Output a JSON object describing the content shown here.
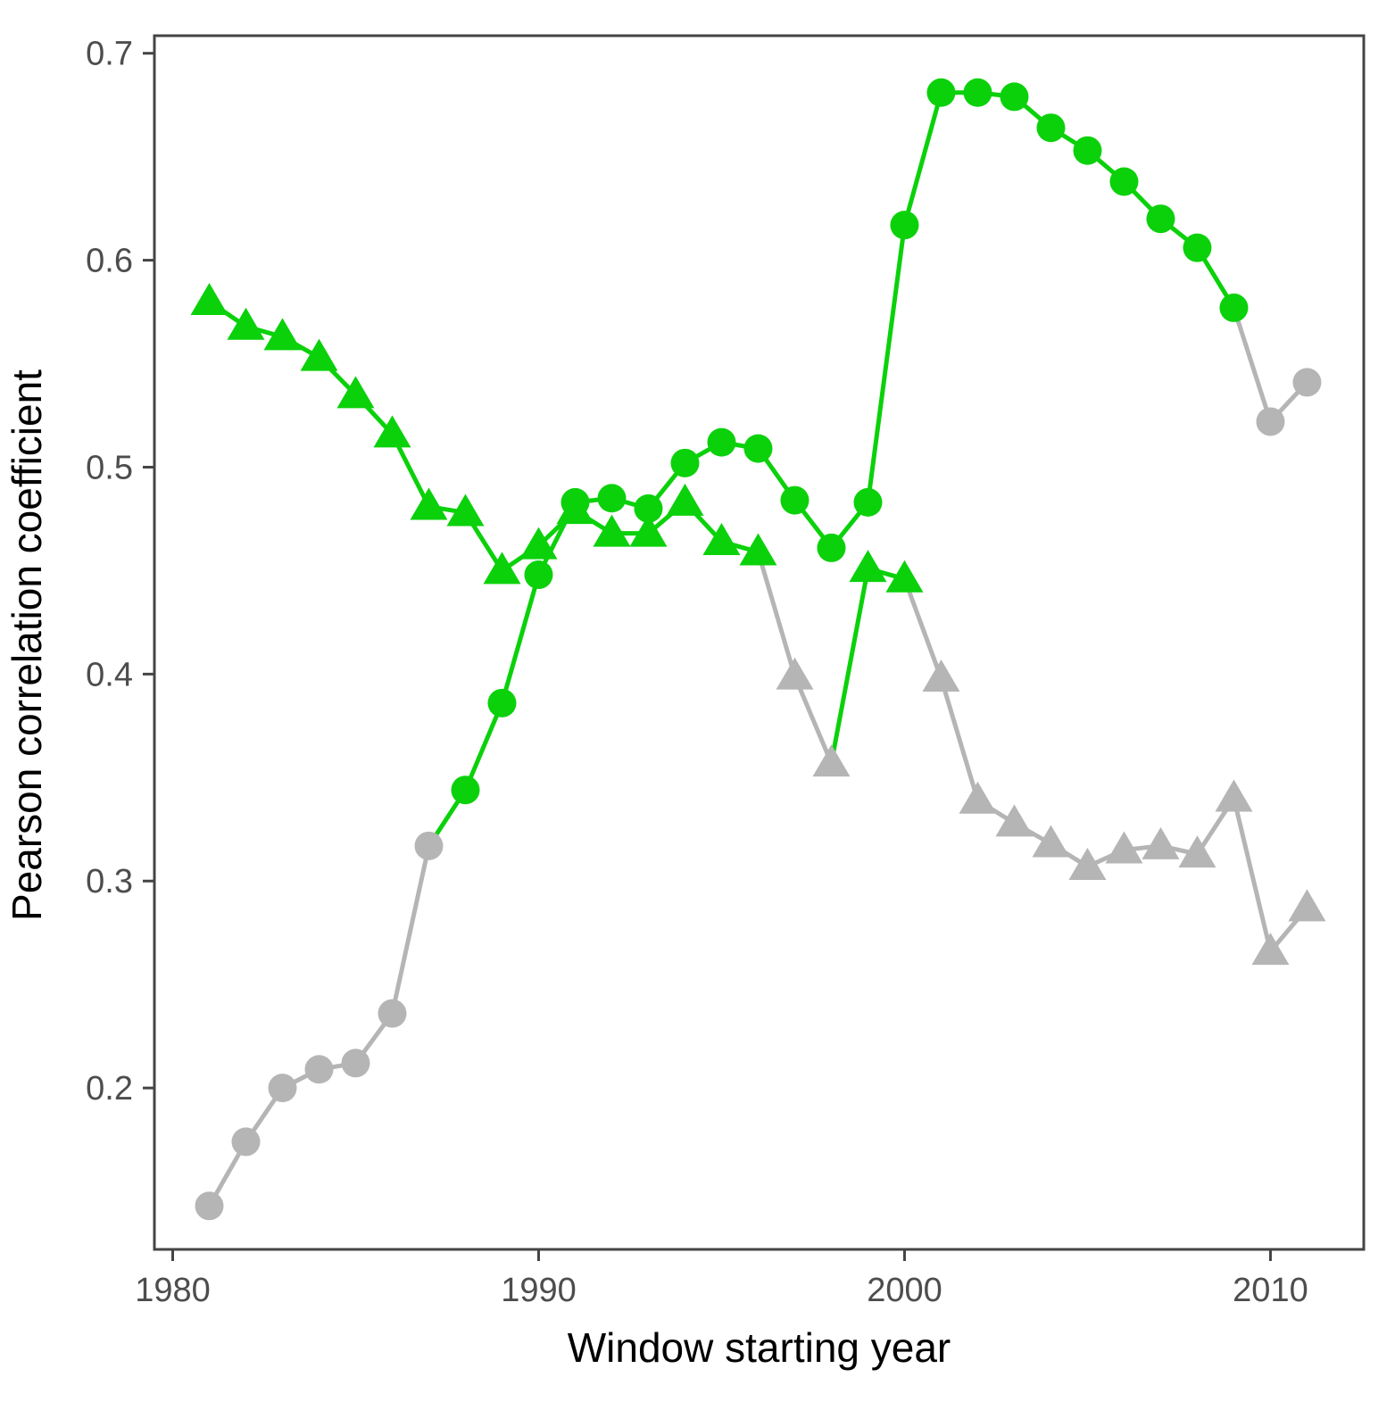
{
  "chart_data": {
    "type": "line",
    "title": "",
    "xlabel": "Window starting year",
    "ylabel": "Pearson correlation coefficient",
    "x": [
      1981,
      1982,
      1983,
      1984,
      1985,
      1986,
      1987,
      1988,
      1989,
      1990,
      1991,
      1992,
      1993,
      1994,
      1995,
      1996,
      1997,
      1998,
      1999,
      2000,
      2001,
      2002,
      2003,
      2004,
      2005,
      2006,
      2007,
      2008,
      2009,
      2010,
      2011
    ],
    "series": [
      {
        "name": "triangle-series",
        "marker": "triangle",
        "values": [
          0.58,
          0.568,
          0.563,
          0.553,
          0.535,
          0.516,
          0.481,
          0.478,
          0.45,
          0.462,
          0.479,
          0.468,
          0.468,
          0.483,
          0.464,
          0.459,
          0.399,
          0.357,
          0.451,
          0.446,
          0.398,
          0.339,
          0.328,
          0.318,
          0.307,
          0.315,
          0.317,
          0.313,
          0.34,
          0.266,
          0.287
        ],
        "point_colors": [
          "green",
          "green",
          "green",
          "green",
          "green",
          "green",
          "green",
          "green",
          "green",
          "green",
          "green",
          "green",
          "green",
          "green",
          "green",
          "green",
          "gray",
          "gray",
          "green",
          "green",
          "gray",
          "gray",
          "gray",
          "gray",
          "gray",
          "gray",
          "gray",
          "gray",
          "gray",
          "gray",
          "gray"
        ]
      },
      {
        "name": "circle-series",
        "marker": "circle",
        "values": [
          0.143,
          0.174,
          0.2,
          0.209,
          0.212,
          0.236,
          0.317,
          0.344,
          0.386,
          0.448,
          0.483,
          0.485,
          0.48,
          0.502,
          0.512,
          0.509,
          0.484,
          0.461,
          0.483,
          0.617,
          0.681,
          0.681,
          0.679,
          0.664,
          0.653,
          0.638,
          0.62,
          0.606,
          0.577,
          0.522,
          0.541
        ],
        "point_colors": [
          "gray",
          "gray",
          "gray",
          "gray",
          "gray",
          "gray",
          "gray",
          "green",
          "green",
          "green",
          "green",
          "green",
          "green",
          "green",
          "green",
          "green",
          "green",
          "green",
          "green",
          "green",
          "green",
          "green",
          "green",
          "green",
          "green",
          "green",
          "green",
          "green",
          "green",
          "gray",
          "gray"
        ]
      }
    ],
    "palette": {
      "green": "#0bd10b",
      "gray": "#b5b5b5",
      "axis_text": "#4d4d4d",
      "axis_line": "#444444",
      "title_text": "#000000"
    },
    "x_ticks": [
      1980,
      1990,
      2000,
      2010
    ],
    "y_ticks": [
      0.2,
      0.3,
      0.4,
      0.5,
      0.6,
      0.7
    ],
    "xlim": [
      1979.5,
      2012.55
    ],
    "ylim": [
      0.122,
      0.7085
    ],
    "grid": false,
    "legend": "none"
  }
}
